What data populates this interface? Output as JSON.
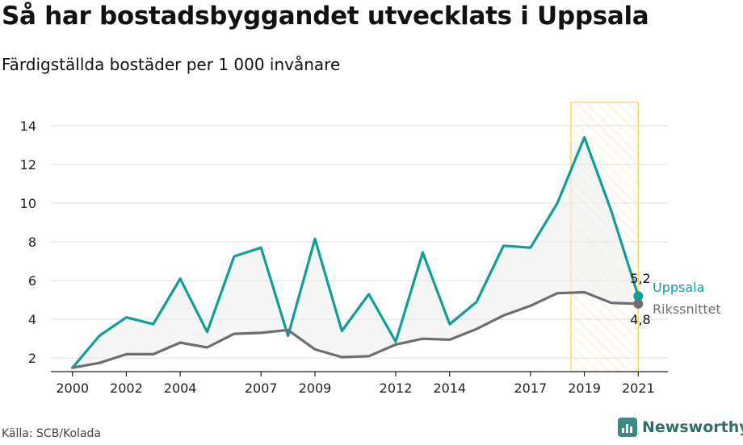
{
  "header": {
    "title": "Så har bostadsbyggandet utvecklats i Uppsala",
    "subtitle": "Färdigställda bostäder per 1 000 invånare"
  },
  "footer": {
    "source": "Källa: SCB/Kolada",
    "brand": "Newsworthy"
  },
  "colors": {
    "uppsala": "#109e96",
    "riks": "#6e6d73",
    "highlight": "#f7c84a",
    "grid": "#dddddd"
  },
  "chart_data": {
    "type": "line",
    "title": "Så har bostadsbyggandet utvecklats i Uppsala",
    "subtitle": "Färdigställda bostäder per 1 000 invånare",
    "x": [
      2000,
      2001,
      2002,
      2003,
      2004,
      2005,
      2006,
      2007,
      2008,
      2009,
      2010,
      2011,
      2012,
      2013,
      2014,
      2015,
      2016,
      2017,
      2018,
      2019,
      2020,
      2021
    ],
    "x_tick_labels": [
      "2000",
      "2002",
      "2004",
      "2007",
      "2009",
      "2012",
      "2014",
      "2017",
      "2019",
      "2021"
    ],
    "y_tick_labels": [
      "2",
      "4",
      "6",
      "8",
      "10",
      "12",
      "14"
    ],
    "ylim": [
      1.3,
      15.2
    ],
    "xlim": [
      1999.2,
      2022.1
    ],
    "grid": true,
    "highlight_range": [
      2018.5,
      2021
    ],
    "series": [
      {
        "name": "Uppsala",
        "values": [
          1.5,
          3.15,
          4.1,
          3.75,
          6.1,
          3.35,
          7.25,
          7.7,
          3.15,
          8.15,
          3.4,
          5.3,
          2.85,
          7.45,
          3.75,
          4.9,
          7.8,
          7.7,
          10.0,
          13.4,
          9.6,
          5.2
        ]
      },
      {
        "name": "Rikssnittet",
        "values": [
          1.5,
          1.75,
          2.2,
          2.2,
          2.8,
          2.55,
          3.25,
          3.3,
          3.45,
          2.45,
          2.05,
          2.1,
          2.7,
          3.0,
          2.95,
          3.5,
          4.2,
          4.7,
          5.35,
          5.4,
          4.85,
          4.8
        ]
      }
    ],
    "end_labels": {
      "uppsala_value": "5,2",
      "riks_value": "4,8"
    }
  }
}
